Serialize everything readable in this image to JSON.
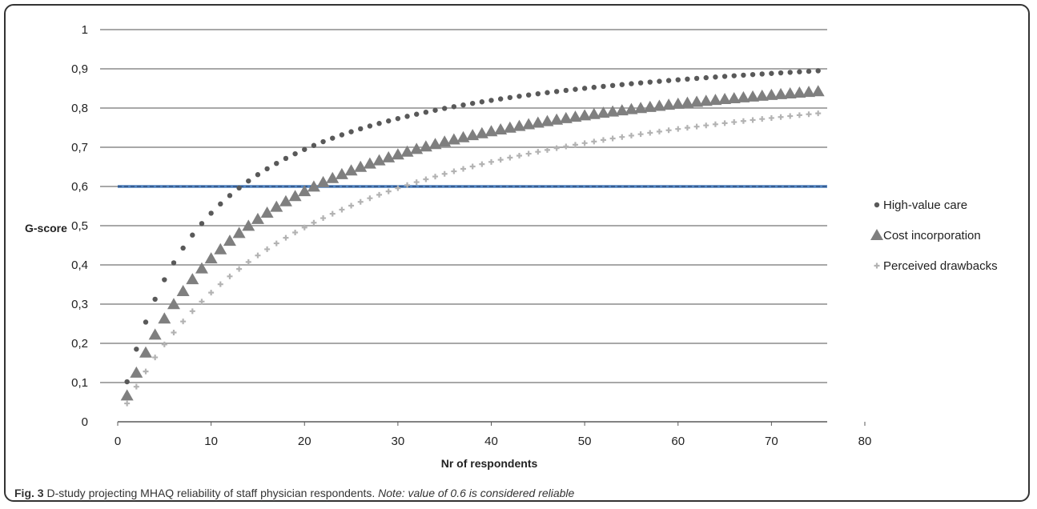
{
  "chart_data": {
    "type": "scatter",
    "title": "",
    "xlabel": "Nr of respondents",
    "ylabel": "G-score",
    "xlim": [
      0,
      80
    ],
    "ylim": [
      0,
      1
    ],
    "x_ticks": [
      "0",
      "10",
      "20",
      "30",
      "40",
      "50",
      "60",
      "70",
      "80"
    ],
    "y_ticks": [
      "0",
      "0,1",
      "0,2",
      "0,3",
      "0,4",
      "0,5",
      "0,6",
      "0,7",
      "0,8",
      "0,9",
      "1"
    ],
    "grid": "horizontal",
    "legend_position": "right",
    "x_range_points": [
      1,
      75
    ],
    "series": [
      {
        "name": "High-value care",
        "marker": "circle",
        "color": "#595959",
        "single_respondent_g": 0.102
      },
      {
        "name": "Cost incorporation",
        "marker": "triangle",
        "color": "#7f7f7f",
        "single_respondent_g": 0.0665
      },
      {
        "name": "Perceived drawbacks",
        "marker": "plus",
        "color": "#b3b3b3",
        "single_respondent_g": 0.0468
      }
    ],
    "reference_line": {
      "y": 0.6,
      "color": "#4f81bd"
    },
    "colors": {
      "grid": "#8c8c8c",
      "reference_dash": "#1f3864"
    }
  },
  "caption": {
    "fig_label": "Fig. 3",
    "text": " D-study projecting MHAQ reliability of staff physician respondents. ",
    "note": "Note: value of 0.6 is considered reliable"
  }
}
